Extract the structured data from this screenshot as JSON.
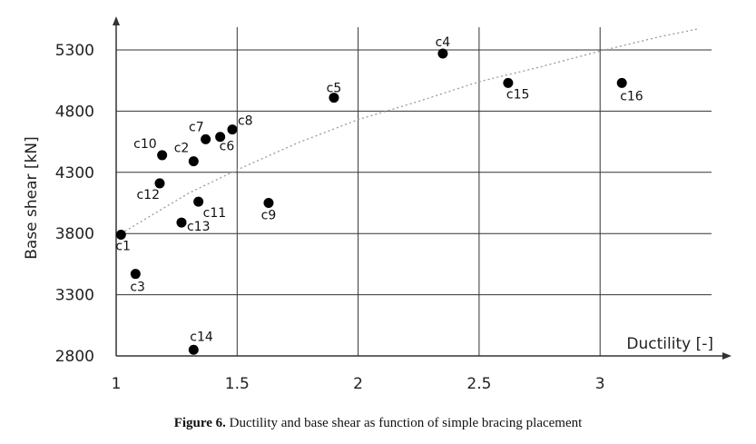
{
  "chart_data": {
    "type": "scatter",
    "title": "",
    "xlabel": "Ductility [-]",
    "ylabel": "Base shear [kN]",
    "xlim": [
      1,
      3.5
    ],
    "ylim": [
      2800,
      5550
    ],
    "xticks": [
      "1",
      "1.5",
      "2",
      "2.5",
      "3"
    ],
    "yticks": [
      "2800",
      "3300",
      "3800",
      "4300",
      "4800",
      "5300"
    ],
    "grid": true,
    "points": [
      {
        "label": "c1",
        "x": 1.02,
        "y": 3790
      },
      {
        "label": "c2",
        "x": 1.32,
        "y": 4390
      },
      {
        "label": "c3",
        "x": 1.08,
        "y": 3470
      },
      {
        "label": "c4",
        "x": 2.35,
        "y": 5270
      },
      {
        "label": "c5",
        "x": 1.9,
        "y": 4910
      },
      {
        "label": "c6",
        "x": 1.43,
        "y": 4590
      },
      {
        "label": "c7",
        "x": 1.37,
        "y": 4570
      },
      {
        "label": "c8",
        "x": 1.48,
        "y": 4650
      },
      {
        "label": "c9",
        "x": 1.63,
        "y": 4050
      },
      {
        "label": "c10",
        "x": 1.19,
        "y": 4440
      },
      {
        "label": "c11",
        "x": 1.34,
        "y": 4060
      },
      {
        "label": "c12",
        "x": 1.18,
        "y": 4210
      },
      {
        "label": "c13",
        "x": 1.27,
        "y": 3890
      },
      {
        "label": "c14",
        "x": 1.32,
        "y": 2850
      },
      {
        "label": "c15",
        "x": 2.62,
        "y": 5030
      },
      {
        "label": "c16",
        "x": 3.09,
        "y": 5030
      }
    ],
    "trendline": {
      "style": "dotted",
      "x": [
        1.02,
        1.3,
        1.5,
        1.75,
        2.0,
        2.25,
        2.5,
        2.75,
        3.0,
        3.25,
        3.4
      ],
      "y": [
        3800,
        4130,
        4320,
        4540,
        4730,
        4880,
        5040,
        5160,
        5290,
        5410,
        5470
      ]
    }
  },
  "caption": {
    "label": "Figure 6.",
    "text": " Ductility and base shear as function of simple bracing placement"
  }
}
